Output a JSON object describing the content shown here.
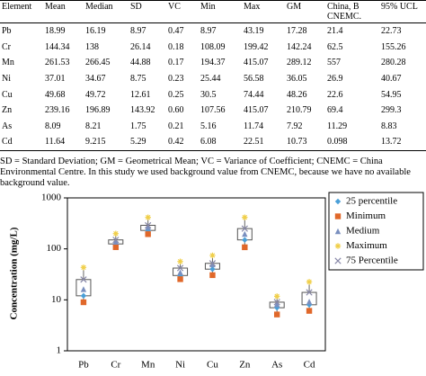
{
  "table": {
    "headers": [
      "Element",
      "Mean",
      "Median",
      "SD",
      "VC",
      "Min",
      "Max",
      "GM",
      "China, B CNEMC.",
      "95% UCL"
    ],
    "rows": [
      [
        "Pb",
        "18.99",
        "16.19",
        "8.97",
        "0.47",
        "8.97",
        "43.19",
        "17.28",
        "21.4",
        "22.73"
      ],
      [
        "Cr",
        "144.34",
        "138",
        "26.14",
        "0.18",
        "108.09",
        "199.42",
        "142.24",
        "62.5",
        "155.26"
      ],
      [
        "Mn",
        "261.53",
        "266.45",
        "44.88",
        "0.17",
        "194.37",
        "415.07",
        "289.12",
        "557",
        "280.28"
      ],
      [
        "Ni",
        "37.01",
        "34.67",
        "8.75",
        "0.23",
        "25.44",
        "56.58",
        "36.05",
        "26.9",
        "40.67"
      ],
      [
        "Cu",
        "49.68",
        "49.72",
        "12.61",
        "0.25",
        "30.5",
        "74.44",
        "48.26",
        "22.6",
        "54.95"
      ],
      [
        "Zn",
        "239.16",
        "196.89",
        "143.92",
        "0.60",
        "107.56",
        "415.07",
        "210.79",
        "69.4",
        "299.3"
      ],
      [
        "As",
        "8.09",
        "8.21",
        "1.75",
        "0.21",
        "5.16",
        "11.74",
        "7.92",
        "11.29",
        "8.83"
      ],
      [
        "Cd",
        "11.64",
        "9.215",
        "5.29",
        "0.42",
        "6.08",
        "22.51",
        "10.73",
        "0.098",
        "13.72"
      ]
    ]
  },
  "footnote": "SD = Standard Deviation; GM = Geometrical Mean; VC = Variance of Coefficient; CNEMC = China Environmental Centre. In this study we used background value from CNEMC, because we have no available background value.",
  "chart_data": {
    "type": "box",
    "ylabel": "Concentration (mg/L)",
    "log_scale": true,
    "categories": [
      "Pb",
      "Cr",
      "Mn",
      "Ni",
      "Cu",
      "Zn",
      "As",
      "Cd"
    ],
    "series": [
      {
        "name": "25 percentile",
        "color": "#4a9fd8",
        "values": [
          12,
          125,
          230,
          30,
          40,
          150,
          7,
          8
        ]
      },
      {
        "name": "Minimum",
        "color": "#e0682a",
        "values": [
          8.97,
          108.09,
          194.37,
          25.44,
          30.5,
          107.56,
          5.16,
          6.08
        ]
      },
      {
        "name": "Medium",
        "color": "#7a8fbf",
        "values": [
          16.19,
          138,
          266.45,
          34.67,
          49.72,
          196.89,
          8.21,
          9.215
        ]
      },
      {
        "name": "Maximum",
        "color": "#f0cf4a",
        "values": [
          43.19,
          199.42,
          415.07,
          56.58,
          74.44,
          415.07,
          11.74,
          22.51
        ]
      },
      {
        "name": "75 Percentile",
        "color": "#8888a8",
        "values": [
          25,
          150,
          290,
          42,
          52,
          250,
          9,
          14
        ]
      }
    ],
    "ylim": [
      1,
      1000
    ],
    "yticks": [
      1,
      10,
      100,
      1000
    ]
  }
}
